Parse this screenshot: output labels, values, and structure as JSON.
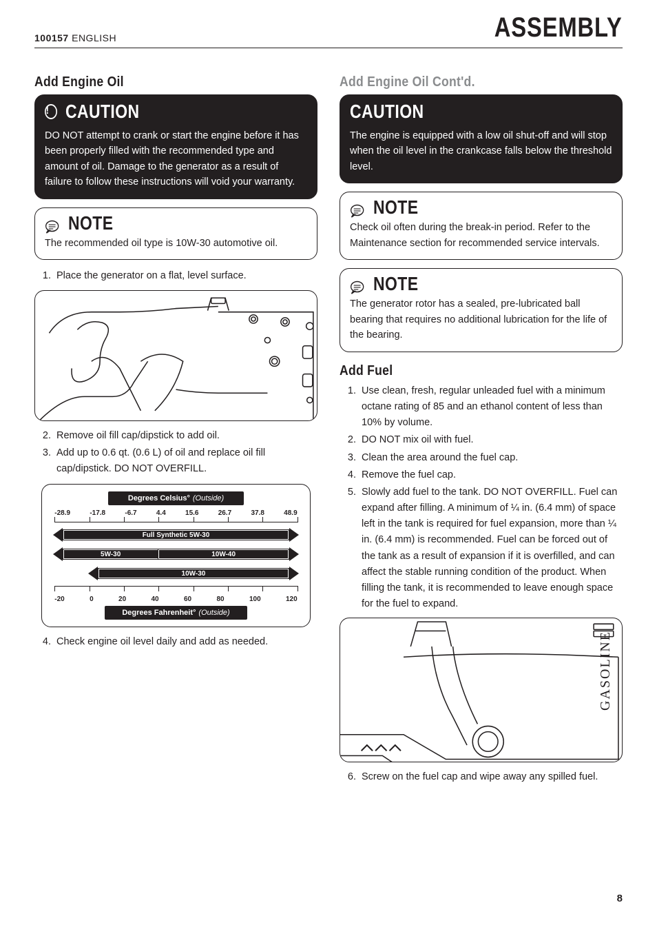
{
  "header": {
    "doc_num": "100157",
    "lang": "ENGLISH",
    "title": "ASSEMBLY"
  },
  "left": {
    "h1": "Add Engine Oil",
    "caution": {
      "label": "CAUTION",
      "body": "DO NOT attempt to crank or start the engine before it has been properly filled with the recommended type and amount of oil. Damage to the generator as a result of failure to follow these instructions will void your warranty."
    },
    "note1": {
      "label": "NOTE",
      "body": "The recommended oil type is 10W-30 automotive oil."
    },
    "step1": "Place the generator on a flat, level surface.",
    "step2": "Remove oil fill cap/dipstick to add oil.",
    "step3": "Add up to 0.6 qt. (0.6 L) of oil and replace oil fill cap/dipstick. DO NOT OVERFILL.",
    "step4": "Check engine oil level daily and add as needed.",
    "chart": {
      "top_label": "Degrees Celsius°",
      "top_label_suffix": "(Outside)",
      "bottom_label": "Degrees Fahrenheit°",
      "bottom_label_suffix": "(Outside)",
      "c_ticks": [
        "-28.9",
        "-17.8",
        "-6.7",
        "4.4",
        "15.6",
        "26.7",
        "37.8",
        "48.9"
      ],
      "f_ticks": [
        "-20",
        "0",
        "20",
        "40",
        "60",
        "80",
        "100",
        "120"
      ],
      "bars": [
        {
          "label": "Full Synthetic 5W-30",
          "l": 0,
          "r": 100,
          "left_arrow": true,
          "right_arrow": true
        },
        {
          "label_l": "5W-30",
          "l": 0,
          "r": 42.8,
          "left_arrow": true,
          "right_arrow": false,
          "label_r": "10W-40",
          "l2": 42.8,
          "r2": 100,
          "left_arrow2": false,
          "right_arrow2": true
        },
        {
          "label": "10W-30",
          "l": 14.3,
          "r": 100,
          "left_arrow": true,
          "right_arrow": true
        }
      ],
      "colors": {
        "bar": "#231f20",
        "text": "#ffffff",
        "border": "#231f20"
      }
    }
  },
  "right": {
    "h1": "Add Engine Oil Cont'd.",
    "caution": {
      "label": "CAUTION",
      "body": "The engine is equipped with a low oil shut-off and will stop when the oil level in the crankcase falls below the threshold level."
    },
    "note1": {
      "label": "NOTE",
      "body": "Check oil often during the break-in period. Refer to the Maintenance section for recommended service intervals."
    },
    "note2": {
      "label": "NOTE",
      "body": "The generator rotor has a sealed, pre-lubricated ball bearing that requires no additional lubrication for the life of the bearing."
    },
    "h2": "Add Fuel",
    "steps": [
      "Use clean, fresh, regular unleaded fuel with a minimum octane rating of 85 and an ethanol content of less than 10% by volume.",
      "DO NOT mix oil with fuel.",
      "Clean the area around the fuel cap.",
      "Remove the fuel cap.",
      "Slowly add fuel to the tank. DO NOT OVERFILL. Fuel can expand after filling. A minimum of ¼ in. (6.4 mm) of space left in the tank is required for fuel expansion, more than ¼ in. (6.4 mm) is recommended. Fuel can be forced out of the tank as a result of expansion if it is overfilled, and can affect the stable running condition of the product. When filling the tank, it is recommended to leave enough space for the fuel to expand."
    ],
    "step6": "Screw on the fuel cap and wipe away any spilled fuel.",
    "gasoline_label": "GASOLINE"
  },
  "page_num": "8",
  "colors": {
    "ink": "#231f20",
    "paper": "#ffffff",
    "gray": "#8a8c8e"
  }
}
